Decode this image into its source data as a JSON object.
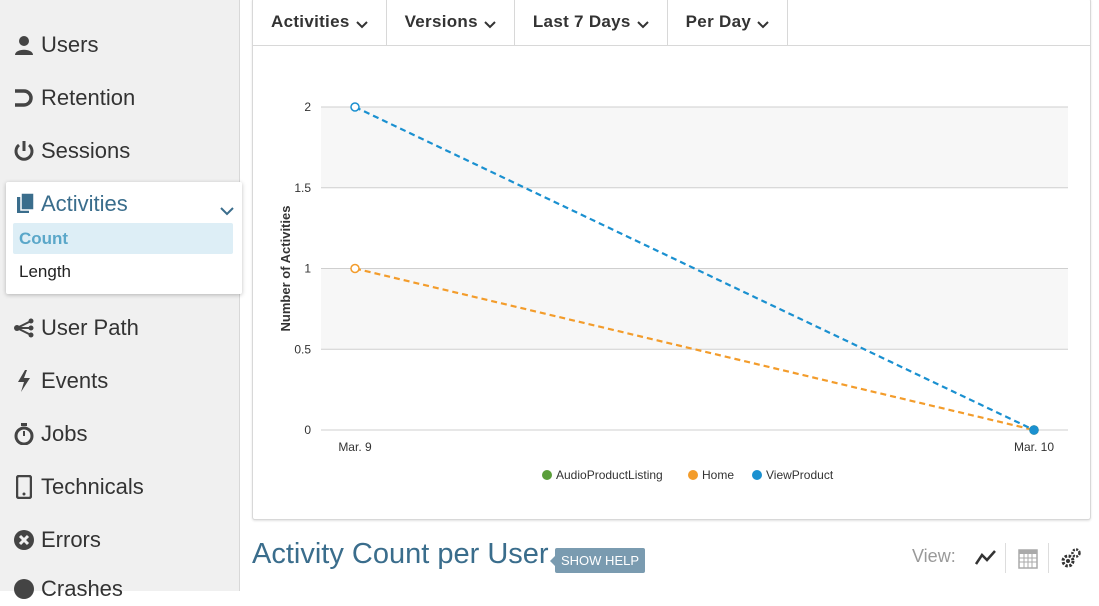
{
  "sidebar": {
    "items": [
      {
        "label": "Users",
        "icon": "user-icon"
      },
      {
        "label": "Retention",
        "icon": "retention-icon"
      },
      {
        "label": "Sessions",
        "icon": "power-icon"
      },
      {
        "label": "User Path",
        "icon": "path-icon"
      },
      {
        "label": "Events",
        "icon": "lightning-icon"
      },
      {
        "label": "Jobs",
        "icon": "stopwatch-icon"
      },
      {
        "label": "Technicals",
        "icon": "phone-icon"
      },
      {
        "label": "Errors",
        "icon": "error-icon"
      },
      {
        "label": "Crashes",
        "icon": "crash-icon"
      }
    ],
    "active_section": {
      "label": "Activities",
      "icon": "documents-icon",
      "subitems": [
        "Count",
        "Length"
      ],
      "selected": "Count"
    }
  },
  "filters": {
    "activities": "Activities",
    "versions": "Versions",
    "range": "Last 7 Days",
    "interval": "Per Day"
  },
  "chart_data": {
    "type": "line",
    "x": [
      "Mar. 9",
      "Mar. 10"
    ],
    "ylabel": "Number of Activities",
    "ylim": [
      0,
      2
    ],
    "yticks": [
      "0",
      "0.5",
      "1",
      "1.5",
      "2"
    ],
    "series": [
      {
        "name": "AudioProductListing",
        "color": "#5a9e3a",
        "values": [
          null,
          0
        ]
      },
      {
        "name": "Home",
        "color": "#f39c2b",
        "values": [
          1,
          0
        ]
      },
      {
        "name": "ViewProduct",
        "color": "#1a90d0",
        "values": [
          2,
          0
        ]
      }
    ],
    "line_style": "dashed",
    "legend_position": "bottom"
  },
  "bottom": {
    "title": "Activity Count per User",
    "help_label": "SHOW HELP",
    "view_label": "View:"
  },
  "colors": {
    "accent": "#3a6d8c",
    "selected_bg": "#ddeef6",
    "selected_text": "#5aa7c9"
  }
}
